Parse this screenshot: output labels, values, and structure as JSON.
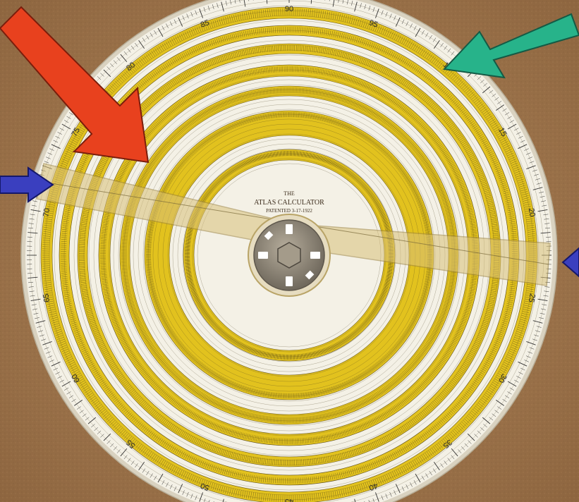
{
  "photo": {
    "background_color": "#a57a4e",
    "disc_color": "#f4f1e6",
    "yellow_band_color": "#e2c21e",
    "cursor_color": "#d8c07a",
    "hub_color": "#8b8375"
  },
  "calculator_label": {
    "line1": "THE",
    "line2": "ATLAS CALCULATOR",
    "line3": "PATENTED 3-17-1922"
  },
  "outer_scale_numbers": [
    "90",
    "95",
    "10",
    "15",
    "20",
    "25",
    "30",
    "35",
    "40",
    "45",
    "50",
    "55",
    "60",
    "65",
    "70",
    "75",
    "80",
    "85"
  ],
  "arrows": [
    {
      "name": "red-arrow",
      "color": "#e8411e"
    },
    {
      "name": "green-arrow",
      "color": "#27b38a"
    },
    {
      "name": "blue-arrow-left",
      "color": "#3a3fbf"
    },
    {
      "name": "blue-arrow-right",
      "color": "#3a3fbf"
    }
  ]
}
